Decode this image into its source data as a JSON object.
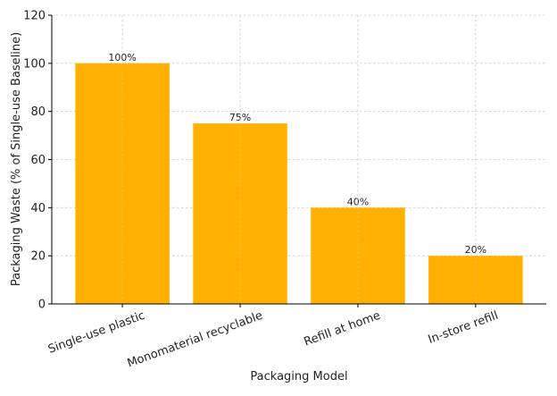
{
  "chart_data": {
    "type": "bar",
    "title": "",
    "xlabel": "Packaging Model",
    "ylabel": "Packaging Waste (% of Single-use Baseline)",
    "categories": [
      "Single-use plastic",
      "Monomaterial recyclable",
      "Refill at home",
      "In-store refill"
    ],
    "values": [
      100,
      75,
      40,
      20
    ],
    "data_labels": [
      "100%",
      "75%",
      "40%",
      "20%"
    ],
    "ylim": [
      0,
      120
    ],
    "yticks": [
      0,
      20,
      40,
      60,
      80,
      100,
      120
    ],
    "grid": true,
    "bar_color": "#FFB000",
    "grid_color": "#cccccc"
  }
}
